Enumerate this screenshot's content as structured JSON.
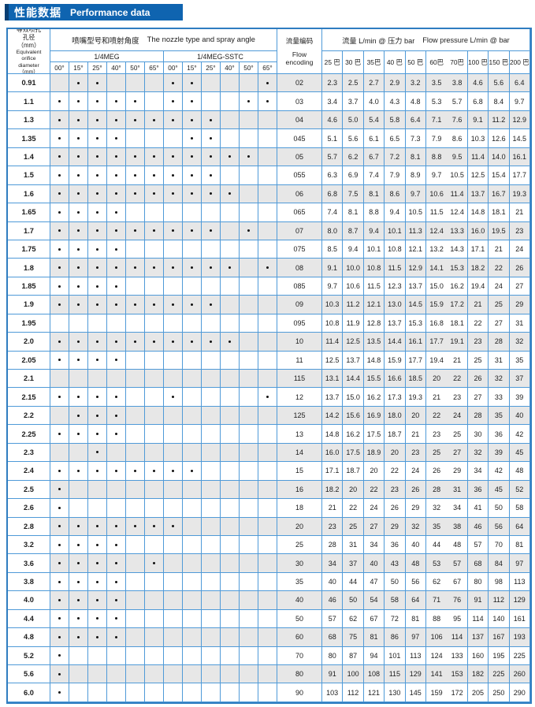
{
  "title": {
    "zh": "性能数据",
    "en": "Performance data"
  },
  "header": {
    "diameter_lines": [
      "等效喷孔",
      "孔径",
      "（mm）",
      "Equivalent",
      "orifice",
      "diameter",
      "（mm）"
    ],
    "nozzle_group_zh": "喷嘴型号和喷射角度",
    "nozzle_group_en": "The nozzle type and spray angle",
    "meg_label": "1/4MEG",
    "sstc_label": "1/4MEG-SSTC",
    "angles": [
      "00°",
      "15°",
      "25°",
      "40°",
      "50°",
      "65°"
    ],
    "flow_encoding_zh": "流量编码",
    "flow_encoding_en": "Flow encoding",
    "flow_group_zh": "流量 L/min @ 压力 bar",
    "flow_group_en": "Flow pressure L/min @ bar",
    "pressures": [
      "25 巴",
      "30 巴",
      "35巴",
      "40 巴",
      "50 巴",
      "60巴",
      "70巴",
      "100 巴",
      "150 巴",
      "200 巴"
    ]
  },
  "colors": {
    "title_bar": "#0f64b0",
    "title_accent": "#083e72",
    "grid_line": "#4f9ad8",
    "outer_border": "#2f7dc0",
    "stripe": "#e7e7e7"
  },
  "chart_data": {
    "type": "table",
    "rows": [
      {
        "d": "0.91",
        "meg": [
          0,
          1,
          1,
          0,
          0,
          0
        ],
        "sstc": [
          1,
          1,
          0,
          0,
          0,
          1
        ],
        "code": "02",
        "flows": [
          "2.3",
          "2.5",
          "2.7",
          "2.9",
          "3.2",
          "3.5",
          "3.8",
          "4.6",
          "5.6",
          "6.4"
        ]
      },
      {
        "d": "1.1",
        "meg": [
          1,
          1,
          1,
          1,
          1,
          0
        ],
        "sstc": [
          1,
          1,
          0,
          0,
          1,
          1
        ],
        "code": "03",
        "flows": [
          "3.4",
          "3.7",
          "4.0",
          "4.3",
          "4.8",
          "5.3",
          "5.7",
          "6.8",
          "8.4",
          "9.7"
        ]
      },
      {
        "d": "1.3",
        "meg": [
          1,
          1,
          1,
          1,
          1,
          1
        ],
        "sstc": [
          1,
          1,
          1,
          0,
          0,
          0
        ],
        "code": "04",
        "flows": [
          "4.6",
          "5.0",
          "5.4",
          "5.8",
          "6.4",
          "7.1",
          "7.6",
          "9.1",
          "11.2",
          "12.9"
        ]
      },
      {
        "d": "1.35",
        "meg": [
          1,
          1,
          1,
          1,
          0,
          0
        ],
        "sstc": [
          0,
          1,
          1,
          0,
          0,
          0
        ],
        "code": "045",
        "flows": [
          "5.1",
          "5.6",
          "6.1",
          "6.5",
          "7.3",
          "7.9",
          "8.6",
          "10.3",
          "12.6",
          "14.5"
        ]
      },
      {
        "d": "1.4",
        "meg": [
          1,
          1,
          1,
          1,
          1,
          1
        ],
        "sstc": [
          1,
          1,
          1,
          1,
          1,
          0
        ],
        "code": "05",
        "flows": [
          "5.7",
          "6.2",
          "6.7",
          "7.2",
          "8.1",
          "8.8",
          "9.5",
          "11.4",
          "14.0",
          "16.1"
        ]
      },
      {
        "d": "1.5",
        "meg": [
          1,
          1,
          1,
          1,
          1,
          1
        ],
        "sstc": [
          1,
          1,
          1,
          0,
          0,
          0
        ],
        "code": "055",
        "flows": [
          "6.3",
          "6.9",
          "7.4",
          "7.9",
          "8.9",
          "9.7",
          "10.5",
          "12.5",
          "15.4",
          "17.7"
        ]
      },
      {
        "d": "1.6",
        "meg": [
          1,
          1,
          1,
          1,
          1,
          1
        ],
        "sstc": [
          1,
          1,
          1,
          1,
          0,
          0
        ],
        "code": "06",
        "flows": [
          "6.8",
          "7.5",
          "8.1",
          "8.6",
          "9.7",
          "10.6",
          "11.4",
          "13.7",
          "16.7",
          "19.3"
        ]
      },
      {
        "d": "1.65",
        "meg": [
          1,
          1,
          1,
          1,
          0,
          0
        ],
        "sstc": [
          0,
          0,
          0,
          0,
          0,
          0
        ],
        "code": "065",
        "flows": [
          "7.4",
          "8.1",
          "8.8",
          "9.4",
          "10.5",
          "11.5",
          "12.4",
          "14.8",
          "18.1",
          "21"
        ]
      },
      {
        "d": "1.7",
        "meg": [
          1,
          1,
          1,
          1,
          1,
          1
        ],
        "sstc": [
          1,
          1,
          1,
          0,
          1,
          0
        ],
        "code": "07",
        "flows": [
          "8.0",
          "8.7",
          "9.4",
          "10.1",
          "11.3",
          "12.4",
          "13.3",
          "16.0",
          "19.5",
          "23"
        ]
      },
      {
        "d": "1.75",
        "meg": [
          1,
          1,
          1,
          1,
          0,
          0
        ],
        "sstc": [
          0,
          0,
          0,
          0,
          0,
          0
        ],
        "code": "075",
        "flows": [
          "8.5",
          "9.4",
          "10.1",
          "10.8",
          "12.1",
          "13.2",
          "14.3",
          "17.1",
          "21",
          "24"
        ]
      },
      {
        "d": "1.8",
        "meg": [
          1,
          1,
          1,
          1,
          1,
          1
        ],
        "sstc": [
          1,
          1,
          1,
          1,
          0,
          1
        ],
        "code": "08",
        "flows": [
          "9.1",
          "10.0",
          "10.8",
          "11.5",
          "12.9",
          "14.1",
          "15.3",
          "18.2",
          "22",
          "26"
        ]
      },
      {
        "d": "1.85",
        "meg": [
          1,
          1,
          1,
          1,
          0,
          0
        ],
        "sstc": [
          0,
          0,
          0,
          0,
          0,
          0
        ],
        "code": "085",
        "flows": [
          "9.7",
          "10.6",
          "11.5",
          "12.3",
          "13.7",
          "15.0",
          "16.2",
          "19.4",
          "24",
          "27"
        ]
      },
      {
        "d": "1.9",
        "meg": [
          1,
          1,
          1,
          1,
          1,
          1
        ],
        "sstc": [
          1,
          1,
          1,
          0,
          0,
          0
        ],
        "code": "09",
        "flows": [
          "10.3",
          "11.2",
          "12.1",
          "13.0",
          "14.5",
          "15.9",
          "17.2",
          "21",
          "25",
          "29"
        ]
      },
      {
        "d": "1.95",
        "meg": [
          0,
          0,
          0,
          0,
          0,
          0
        ],
        "sstc": [
          0,
          0,
          0,
          0,
          0,
          0
        ],
        "code": "095",
        "flows": [
          "10.8",
          "11.9",
          "12.8",
          "13.7",
          "15.3",
          "16.8",
          "18.1",
          "22",
          "27",
          "31"
        ]
      },
      {
        "d": "2.0",
        "meg": [
          1,
          1,
          1,
          1,
          1,
          1
        ],
        "sstc": [
          1,
          1,
          1,
          1,
          0,
          0
        ],
        "code": "10",
        "flows": [
          "11.4",
          "12.5",
          "13.5",
          "14.4",
          "16.1",
          "17.7",
          "19.1",
          "23",
          "28",
          "32"
        ]
      },
      {
        "d": "2.05",
        "meg": [
          1,
          1,
          1,
          1,
          0,
          0
        ],
        "sstc": [
          0,
          0,
          0,
          0,
          0,
          0
        ],
        "code": "11",
        "flows": [
          "12.5",
          "13.7",
          "14.8",
          "15.9",
          "17.7",
          "19.4",
          "21",
          "25",
          "31",
          "35"
        ]
      },
      {
        "d": "2.1",
        "meg": [
          0,
          0,
          0,
          0,
          0,
          0
        ],
        "sstc": [
          0,
          0,
          0,
          0,
          0,
          0
        ],
        "code": "115",
        "flows": [
          "13.1",
          "14.4",
          "15.5",
          "16.6",
          "18.5",
          "20",
          "22",
          "26",
          "32",
          "37"
        ]
      },
      {
        "d": "2.15",
        "meg": [
          1,
          1,
          1,
          1,
          0,
          0
        ],
        "sstc": [
          1,
          0,
          0,
          0,
          0,
          1
        ],
        "code": "12",
        "flows": [
          "13.7",
          "15.0",
          "16.2",
          "17.3",
          "19.3",
          "21",
          "23",
          "27",
          "33",
          "39"
        ]
      },
      {
        "d": "2.2",
        "meg": [
          0,
          1,
          1,
          1,
          0,
          0
        ],
        "sstc": [
          0,
          0,
          0,
          0,
          0,
          0
        ],
        "code": "125",
        "flows": [
          "14.2",
          "15.6",
          "16.9",
          "18.0",
          "20",
          "22",
          "24",
          "28",
          "35",
          "40"
        ]
      },
      {
        "d": "2.25",
        "meg": [
          1,
          1,
          1,
          1,
          0,
          0
        ],
        "sstc": [
          0,
          0,
          0,
          0,
          0,
          0
        ],
        "code": "13",
        "flows": [
          "14.8",
          "16.2",
          "17.5",
          "18.7",
          "21",
          "23",
          "25",
          "30",
          "36",
          "42"
        ]
      },
      {
        "d": "2.3",
        "meg": [
          0,
          0,
          1,
          0,
          0,
          0
        ],
        "sstc": [
          0,
          0,
          0,
          0,
          0,
          0
        ],
        "code": "14",
        "flows": [
          "16.0",
          "17.5",
          "18.9",
          "20",
          "23",
          "25",
          "27",
          "32",
          "39",
          "45"
        ]
      },
      {
        "d": "2.4",
        "meg": [
          1,
          1,
          1,
          1,
          1,
          1
        ],
        "sstc": [
          1,
          1,
          0,
          0,
          0,
          0
        ],
        "code": "15",
        "flows": [
          "17.1",
          "18.7",
          "20",
          "22",
          "24",
          "26",
          "29",
          "34",
          "42",
          "48"
        ]
      },
      {
        "d": "2.5",
        "meg": [
          1,
          0,
          0,
          0,
          0,
          0
        ],
        "sstc": [
          0,
          0,
          0,
          0,
          0,
          0
        ],
        "code": "16",
        "flows": [
          "18.2",
          "20",
          "22",
          "23",
          "26",
          "28",
          "31",
          "36",
          "45",
          "52"
        ]
      },
      {
        "d": "2.6",
        "meg": [
          1,
          0,
          0,
          0,
          0,
          0
        ],
        "sstc": [
          0,
          0,
          0,
          0,
          0,
          0
        ],
        "code": "18",
        "flows": [
          "21",
          "22",
          "24",
          "26",
          "29",
          "32",
          "34",
          "41",
          "50",
          "58"
        ]
      },
      {
        "d": "2.8",
        "meg": [
          1,
          1,
          1,
          1,
          1,
          1
        ],
        "sstc": [
          1,
          0,
          0,
          0,
          0,
          0
        ],
        "code": "20",
        "flows": [
          "23",
          "25",
          "27",
          "29",
          "32",
          "35",
          "38",
          "46",
          "56",
          "64"
        ]
      },
      {
        "d": "3.2",
        "meg": [
          1,
          1,
          1,
          1,
          0,
          0
        ],
        "sstc": [
          0,
          0,
          0,
          0,
          0,
          0
        ],
        "code": "25",
        "flows": [
          "28",
          "31",
          "34",
          "36",
          "40",
          "44",
          "48",
          "57",
          "70",
          "81"
        ]
      },
      {
        "d": "3.6",
        "meg": [
          1,
          1,
          1,
          1,
          0,
          1
        ],
        "sstc": [
          0,
          0,
          0,
          0,
          0,
          0
        ],
        "code": "30",
        "flows": [
          "34",
          "37",
          "40",
          "43",
          "48",
          "53",
          "57",
          "68",
          "84",
          "97"
        ]
      },
      {
        "d": "3.8",
        "meg": [
          1,
          1,
          1,
          1,
          0,
          0
        ],
        "sstc": [
          0,
          0,
          0,
          0,
          0,
          0
        ],
        "code": "35",
        "flows": [
          "40",
          "44",
          "47",
          "50",
          "56",
          "62",
          "67",
          "80",
          "98",
          "113"
        ]
      },
      {
        "d": "4.0",
        "meg": [
          1,
          1,
          1,
          1,
          0,
          0
        ],
        "sstc": [
          0,
          0,
          0,
          0,
          0,
          0
        ],
        "code": "40",
        "flows": [
          "46",
          "50",
          "54",
          "58",
          "64",
          "71",
          "76",
          "91",
          "112",
          "129"
        ]
      },
      {
        "d": "4.4",
        "meg": [
          1,
          1,
          1,
          1,
          0,
          0
        ],
        "sstc": [
          0,
          0,
          0,
          0,
          0,
          0
        ],
        "code": "50",
        "flows": [
          "57",
          "62",
          "67",
          "72",
          "81",
          "88",
          "95",
          "114",
          "140",
          "161"
        ]
      },
      {
        "d": "4.8",
        "meg": [
          1,
          1,
          1,
          1,
          0,
          0
        ],
        "sstc": [
          0,
          0,
          0,
          0,
          0,
          0
        ],
        "code": "60",
        "flows": [
          "68",
          "75",
          "81",
          "86",
          "97",
          "106",
          "114",
          "137",
          "167",
          "193"
        ]
      },
      {
        "d": "5.2",
        "meg": [
          1,
          0,
          0,
          0,
          0,
          0
        ],
        "sstc": [
          0,
          0,
          0,
          0,
          0,
          0
        ],
        "code": "70",
        "flows": [
          "80",
          "87",
          "94",
          "101",
          "113",
          "124",
          "133",
          "160",
          "195",
          "225"
        ]
      },
      {
        "d": "5.6",
        "meg": [
          1,
          0,
          0,
          0,
          0,
          0
        ],
        "sstc": [
          0,
          0,
          0,
          0,
          0,
          0
        ],
        "code": "80",
        "flows": [
          "91",
          "100",
          "108",
          "115",
          "129",
          "141",
          "153",
          "182",
          "225",
          "260"
        ]
      },
      {
        "d": "6.0",
        "meg": [
          1,
          0,
          0,
          0,
          0,
          0
        ],
        "sstc": [
          0,
          0,
          0,
          0,
          0,
          0
        ],
        "code": "90",
        "flows": [
          "103",
          "112",
          "121",
          "130",
          "145",
          "159",
          "172",
          "205",
          "250",
          "290"
        ]
      }
    ]
  }
}
